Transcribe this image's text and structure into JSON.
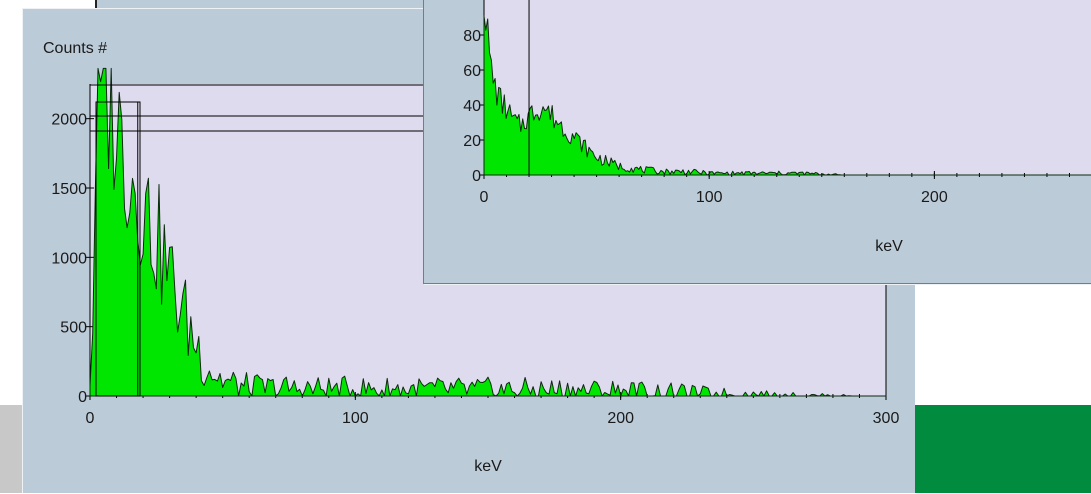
{
  "chart_data": [
    {
      "type": "area",
      "ylabel": "Counts #",
      "xlabel": "keV",
      "xlim": [
        0,
        300
      ],
      "ylim": [
        0,
        2250
      ],
      "x_ticks": [
        0,
        100,
        200,
        300
      ],
      "x_tick_labels": [
        "0",
        "100",
        "200",
        "300"
      ],
      "y_ticks": [
        0,
        500,
        1000,
        1500,
        2000
      ],
      "y_tick_labels": [
        "0",
        "500",
        "1000",
        "1500",
        "2000"
      ],
      "fill_color": "#00e600",
      "marker_lines": [
        {
          "orientation": "vertical",
          "x": 18
        }
      ],
      "series": [
        {
          "x": [
            0,
            1,
            2,
            3,
            4,
            5,
            6,
            8,
            10,
            12,
            14,
            16,
            18,
            20,
            22,
            25,
            28,
            32,
            36,
            40,
            44,
            48,
            52,
            56,
            60,
            70,
            80,
            90,
            100,
            120,
            140,
            160,
            180,
            200,
            220,
            230,
            240,
            250,
            255,
            260,
            270,
            280,
            290,
            300
          ],
          "values": [
            150,
            500,
            1700,
            2050,
            2120,
            2150,
            2140,
            2080,
            1970,
            1840,
            1700,
            1580,
            1470,
            1390,
            1290,
            1140,
            980,
            760,
            560,
            380,
            240,
            140,
            95,
            70,
            60,
            55,
            52,
            50,
            48,
            47,
            46,
            45,
            42,
            38,
            25,
            18,
            12,
            8,
            6,
            4,
            2,
            1,
            0,
            0
          ]
        }
      ]
    },
    {
      "type": "area",
      "xlabel": "keV",
      "xlim": [
        0,
        270
      ],
      "ylim": [
        0,
        100
      ],
      "x_ticks": [
        0,
        100,
        200
      ],
      "x_tick_labels": [
        "0",
        "100",
        "200"
      ],
      "y_ticks": [
        0,
        20,
        40,
        60,
        80
      ],
      "y_tick_labels": [
        "0",
        "20",
        "40",
        "60",
        "80"
      ],
      "fill_color": "#00e600",
      "marker_lines": [
        {
          "orientation": "vertical",
          "x": 20
        }
      ],
      "series": [
        {
          "x": [
            0,
            1,
            2,
            3,
            4,
            6,
            8,
            10,
            12,
            14,
            16,
            18,
            20,
            22,
            24,
            26,
            28,
            30,
            33,
            36,
            40,
            44,
            48,
            52,
            56,
            60,
            65,
            70,
            80,
            90,
            100,
            110,
            120,
            140,
            160,
            180,
            200,
            220,
            240,
            260,
            270
          ],
          "values": [
            100,
            90,
            75,
            62,
            55,
            46,
            41,
            38,
            33,
            30,
            28,
            31,
            34,
            36,
            38,
            39,
            37,
            34,
            30,
            26,
            22,
            17,
            12,
            9,
            7,
            5,
            4,
            3,
            2,
            2,
            1,
            1,
            1,
            1,
            0,
            0,
            0,
            0,
            0,
            0,
            0
          ]
        }
      ]
    }
  ]
}
